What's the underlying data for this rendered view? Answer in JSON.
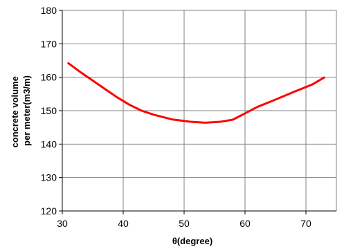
{
  "chart_data": {
    "type": "line",
    "title": "",
    "xlabel": "θ(degree)",
    "ylabel_lines": [
      "concrete volume",
      "per meter(m3/m)"
    ],
    "xlim": [
      30,
      75
    ],
    "ylim": [
      120,
      180
    ],
    "x_ticks": [
      30,
      40,
      50,
      60,
      70
    ],
    "y_ticks": [
      120,
      130,
      140,
      150,
      160,
      170,
      180
    ],
    "grid": true,
    "legend": "none",
    "series": [
      {
        "color": "#ff0000",
        "x": [
          31,
          33,
          35,
          37,
          39,
          41,
          43,
          45,
          48,
          51,
          53.5,
          56,
          58,
          60,
          62,
          65,
          68,
          71,
          73
        ],
        "y": [
          164.2,
          161.5,
          159,
          156.5,
          154,
          151.8,
          150,
          148.8,
          147.4,
          146.7,
          146.4,
          146.7,
          147.3,
          149.2,
          151.1,
          153.3,
          155.6,
          157.8,
          159.9
        ]
      }
    ]
  }
}
